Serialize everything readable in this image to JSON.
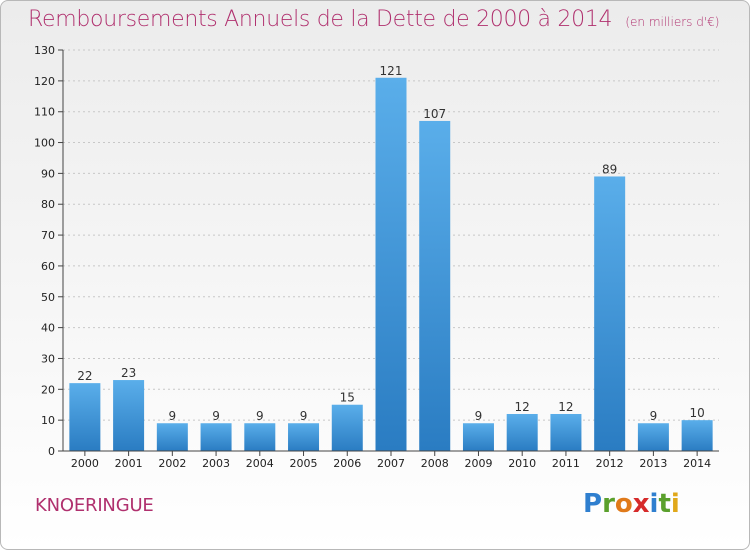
{
  "chart_data": {
    "type": "bar",
    "title": "Remboursements Annuels de la Dette de 2000 à 2014",
    "unit": "(en milliers d'€)",
    "categories": [
      "2000",
      "2001",
      "2002",
      "2003",
      "2004",
      "2005",
      "2006",
      "2007",
      "2008",
      "2009",
      "2010",
      "2011",
      "2012",
      "2013",
      "2014"
    ],
    "values": [
      22,
      23,
      9,
      9,
      9,
      9,
      15,
      121,
      107,
      9,
      12,
      12,
      89,
      9,
      10
    ],
    "ylim": [
      0,
      130
    ],
    "yticks": [
      0,
      10,
      20,
      30,
      40,
      50,
      60,
      70,
      80,
      90,
      100,
      110,
      120,
      130
    ],
    "grid": true,
    "bar_color": "#3f95d8",
    "title_color": "#b0306e"
  },
  "commune": "KNOERINGUE",
  "logo": {
    "letters": [
      "P",
      "r",
      "o",
      "x",
      "i",
      "t",
      "i"
    ],
    "colors": [
      "#2f7fcf",
      "#5aa02c",
      "#e07a1a",
      "#d62a2a",
      "#2f7fcf",
      "#5aa02c",
      "#e0a81a"
    ]
  }
}
